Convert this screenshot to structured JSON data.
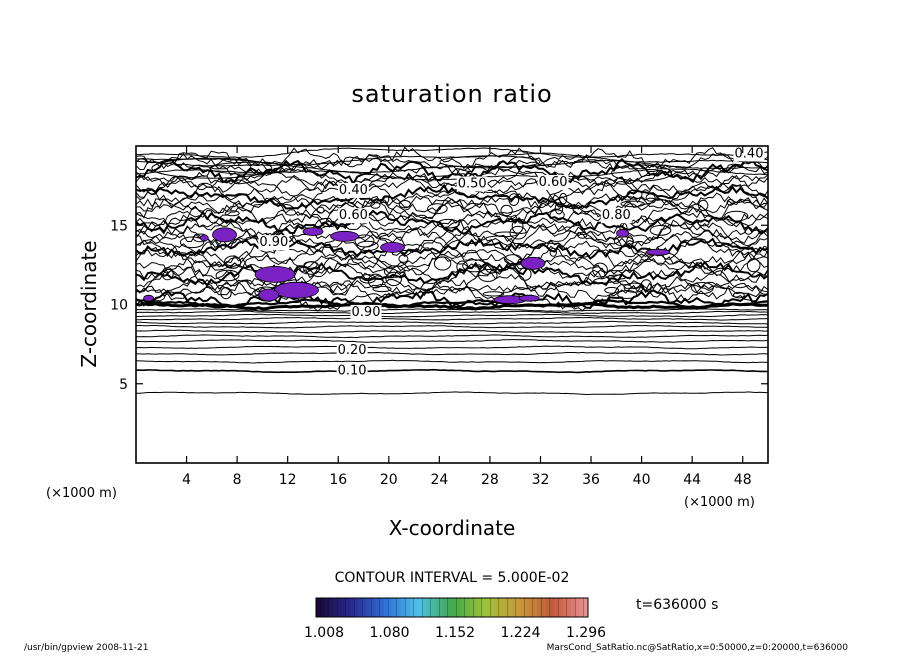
{
  "chart_data": {
    "type": "contour",
    "title": "saturation ratio",
    "xlabel": "X-coordinate",
    "ylabel": "Z-coordinate",
    "x_unit": "(×1000 m)",
    "z_unit": "(×1000 m)",
    "xlim": [
      0,
      50
    ],
    "ylim": [
      0,
      20
    ],
    "x_ticks": [
      4,
      8,
      12,
      16,
      20,
      24,
      28,
      32,
      36,
      40,
      44,
      48
    ],
    "y_ticks": [
      5,
      10,
      15
    ],
    "contour_interval_text": "CONTOUR INTERVAL = 5.000E-02",
    "contour_labels": [
      {
        "text": "0.40",
        "x": 48.5,
        "z": 19.5
      },
      {
        "text": "0.50",
        "x": 26.6,
        "z": 17.6
      },
      {
        "text": "0.60",
        "x": 33.0,
        "z": 17.7
      },
      {
        "text": "0.40",
        "x": 17.2,
        "z": 17.2
      },
      {
        "text": "0.60",
        "x": 17.2,
        "z": 15.6
      },
      {
        "text": "0.80",
        "x": 38.0,
        "z": 15.6
      },
      {
        "text": "0.90",
        "x": 10.9,
        "z": 13.9
      },
      {
        "text": "0.90",
        "x": 18.2,
        "z": 9.5
      },
      {
        "text": "0.20",
        "x": 17.1,
        "z": 7.1
      },
      {
        "text": "0.10",
        "x": 17.1,
        "z": 5.8
      }
    ],
    "supersaturated_color": "#7b22c4",
    "colorbar": {
      "ticks": [
        "1.008",
        "1.080",
        "1.152",
        "1.224",
        "1.296"
      ],
      "colors": [
        "#1a0a3a",
        "#2a2a90",
        "#2f6fd8",
        "#4fc2e8",
        "#3fa84a",
        "#9ec23a",
        "#c89a3a",
        "#c05a3a",
        "#e89090"
      ]
    },
    "time_label": "t=636000 s"
  },
  "footer": {
    "left": "/usr/bin/gpview   2008-11-21",
    "right": "MarsCond_SatRatio.nc@SatRatio,x=0:50000,z=0:20000,t=636000"
  }
}
